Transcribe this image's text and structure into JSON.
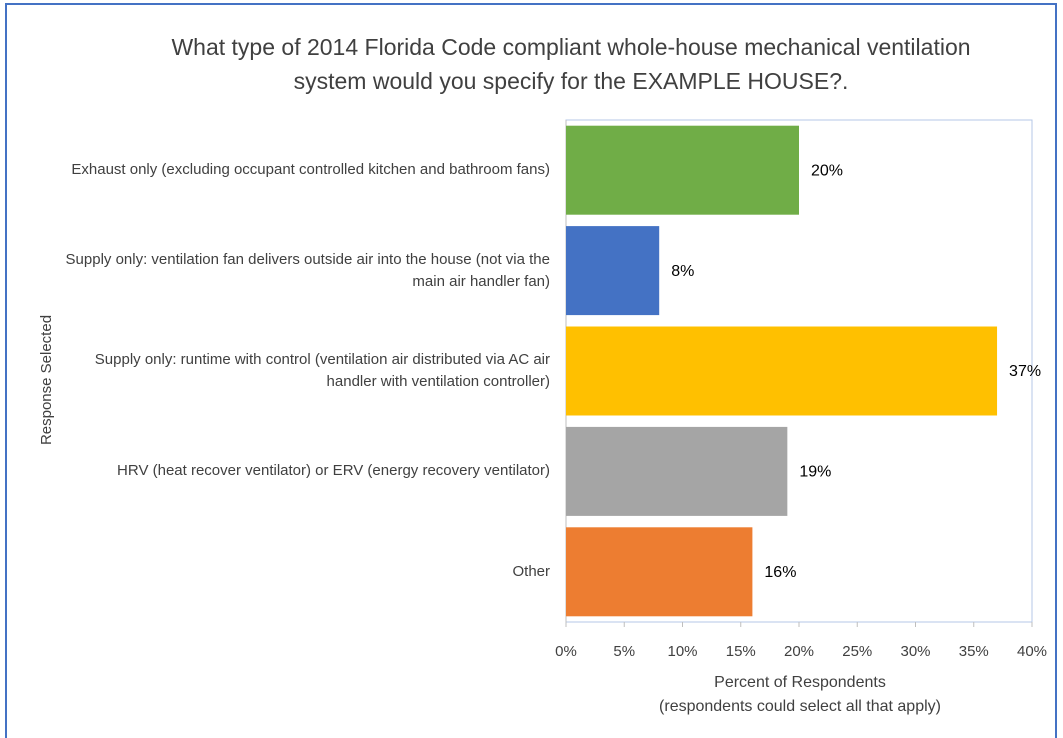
{
  "chart_data": {
    "type": "hbar",
    "title": "What type of 2014 Florida Code compliant whole-house mechanical ventilation system would you specify for the EXAMPLE HOUSE?.",
    "ylabel": "Response Selected",
    "xlabel": [
      "Percent of Respondents",
      "(respondents could select all that apply)"
    ],
    "categories": [
      "Exhaust only (excluding occupant controlled kitchen and bathroom fans)",
      "Supply only: ventilation fan delivers outside air into the house (not via the main air handler fan)",
      "Supply only: runtime with control (ventilation air distributed via AC air handler with ventilation controller)",
      "HRV (heat recover ventilator) or ERV (energy recovery ventilator)",
      "Other"
    ],
    "values": [
      20,
      8,
      37,
      19,
      16
    ],
    "value_labels": [
      "20%",
      "8%",
      "37%",
      "19%",
      "16%"
    ],
    "colors": [
      "#70ad47",
      "#4472c4",
      "#ffc000",
      "#a5a5a5",
      "#ed7d31"
    ],
    "xlim": [
      0,
      40
    ],
    "xticks": [
      {
        "value": 0,
        "label": "0%"
      },
      {
        "value": 5,
        "label": "5%"
      },
      {
        "value": 10,
        "label": "10%"
      },
      {
        "value": 15,
        "label": "15%"
      },
      {
        "value": 20,
        "label": "20%"
      },
      {
        "value": 25,
        "label": "25%"
      },
      {
        "value": 30,
        "label": "30%"
      },
      {
        "value": 35,
        "label": "35%"
      },
      {
        "value": 40,
        "label": "40%"
      }
    ]
  }
}
